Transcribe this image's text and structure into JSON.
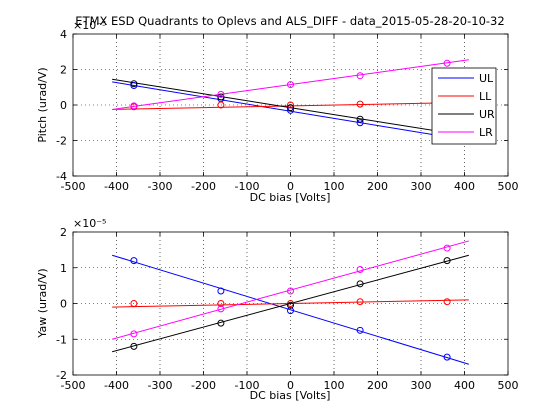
{
  "figure": {
    "title": "ETMX ESD Quadrants to Oplevs and ALS_DIFF - data_2015-05-28-20-10-32"
  },
  "chart_data": [
    {
      "type": "line",
      "xlabel": "DC bias [Volts]",
      "ylabel": "Pitch (urad/V)",
      "y_multiplier": "x 10^-5",
      "xlim": [
        -500,
        500
      ],
      "ylim": [
        -4e-05,
        4e-05
      ],
      "xticks": [
        "-500",
        "-400",
        "-300",
        "-200",
        "-100",
        "0",
        "100",
        "200",
        "300",
        "400",
        "500"
      ],
      "yticks": [
        "-4",
        "-2",
        "0",
        "2",
        "4"
      ],
      "ytick_values": [
        -4e-05,
        -2e-05,
        0,
        2e-05,
        4e-05
      ],
      "grid": true,
      "legend": {
        "placement": "right",
        "entries": [
          "UL",
          "LL",
          "UR",
          "LR"
        ]
      },
      "series": [
        {
          "name": "UL",
          "color": "#0000ff",
          "points_x": [
            -360,
            -160,
            0,
            160,
            360
          ],
          "points_y": [
            1.1e-05,
            3.5e-06,
            -3e-06,
            -1e-05,
            -1.75e-05
          ],
          "fit": [
            [
              -410,
              1.3e-05
            ],
            [
              410,
              -2e-05
            ]
          ]
        },
        {
          "name": "LL",
          "color": "#ff0000",
          "points_x": [
            -360,
            -160,
            0,
            160,
            360
          ],
          "points_y": [
            -1e-06,
            0.0,
            0.0,
            5e-07,
            5e-07
          ],
          "fit": [
            [
              -410,
              -2.5e-06
            ],
            [
              410,
              1.5e-06
            ]
          ]
        },
        {
          "name": "UR",
          "color": "#000000",
          "points_x": [
            -360,
            -160,
            0,
            160,
            360
          ],
          "points_y": [
            1.2e-05,
            4.5e-06,
            -1.5e-06,
            -8e-06,
            -1.55e-05
          ],
          "fit": [
            [
              -410,
              1.45e-05
            ],
            [
              410,
              -1.75e-05
            ]
          ]
        },
        {
          "name": "LR",
          "color": "#ff00ff",
          "points_x": [
            -360,
            -160,
            0,
            160,
            360
          ],
          "points_y": [
            -5e-07,
            6e-06,
            1.15e-05,
            1.65e-05,
            2.35e-05
          ],
          "fit": [
            [
              -410,
              -2.5e-06
            ],
            [
              410,
              2.55e-05
            ]
          ]
        }
      ]
    },
    {
      "type": "line",
      "xlabel": "DC bias [Volts]",
      "ylabel": "Yaw (urad/V)",
      "y_multiplier": "x 10^-5",
      "xlim": [
        -500,
        500
      ],
      "ylim": [
        -2e-05,
        2e-05
      ],
      "xticks": [
        "-500",
        "-400",
        "-300",
        "-200",
        "-100",
        "0",
        "100",
        "200",
        "300",
        "400",
        "500"
      ],
      "yticks": [
        "-2",
        "-1",
        "0",
        "1",
        "2"
      ],
      "ytick_values": [
        -2e-05,
        -1e-05,
        0,
        1e-05,
        2e-05
      ],
      "grid": true,
      "series": [
        {
          "name": "UL",
          "color": "#0000ff",
          "points_x": [
            -360,
            -160,
            0,
            160,
            360
          ],
          "points_y": [
            1.2e-05,
            3.5e-06,
            -2e-06,
            -7.5e-06,
            -1.5e-05
          ],
          "fit": [
            [
              -410,
              1.35e-05
            ],
            [
              410,
              -1.7e-05
            ]
          ]
        },
        {
          "name": "LL",
          "color": "#ff0000",
          "points_x": [
            -360,
            -160,
            0,
            160,
            360
          ],
          "points_y": [
            0.0,
            0.0,
            0.0,
            5e-07,
            5e-07
          ],
          "fit": [
            [
              -410,
              -1e-06
            ],
            [
              410,
              1e-06
            ]
          ]
        },
        {
          "name": "UR",
          "color": "#000000",
          "points_x": [
            -360,
            -160,
            0,
            160,
            360
          ],
          "points_y": [
            -1.2e-05,
            -5.5e-06,
            -5e-07,
            5.5e-06,
            1.2e-05
          ],
          "fit": [
            [
              -410,
              -1.35e-05
            ],
            [
              410,
              1.35e-05
            ]
          ]
        },
        {
          "name": "LR",
          "color": "#ff00ff",
          "points_x": [
            -360,
            -160,
            0,
            160,
            360
          ],
          "points_y": [
            -8.5e-06,
            -1.5e-06,
            3.5e-06,
            9.5e-06,
            1.55e-05
          ],
          "fit": [
            [
              -410,
              -1e-05
            ],
            [
              410,
              1.75e-05
            ]
          ]
        }
      ]
    }
  ]
}
